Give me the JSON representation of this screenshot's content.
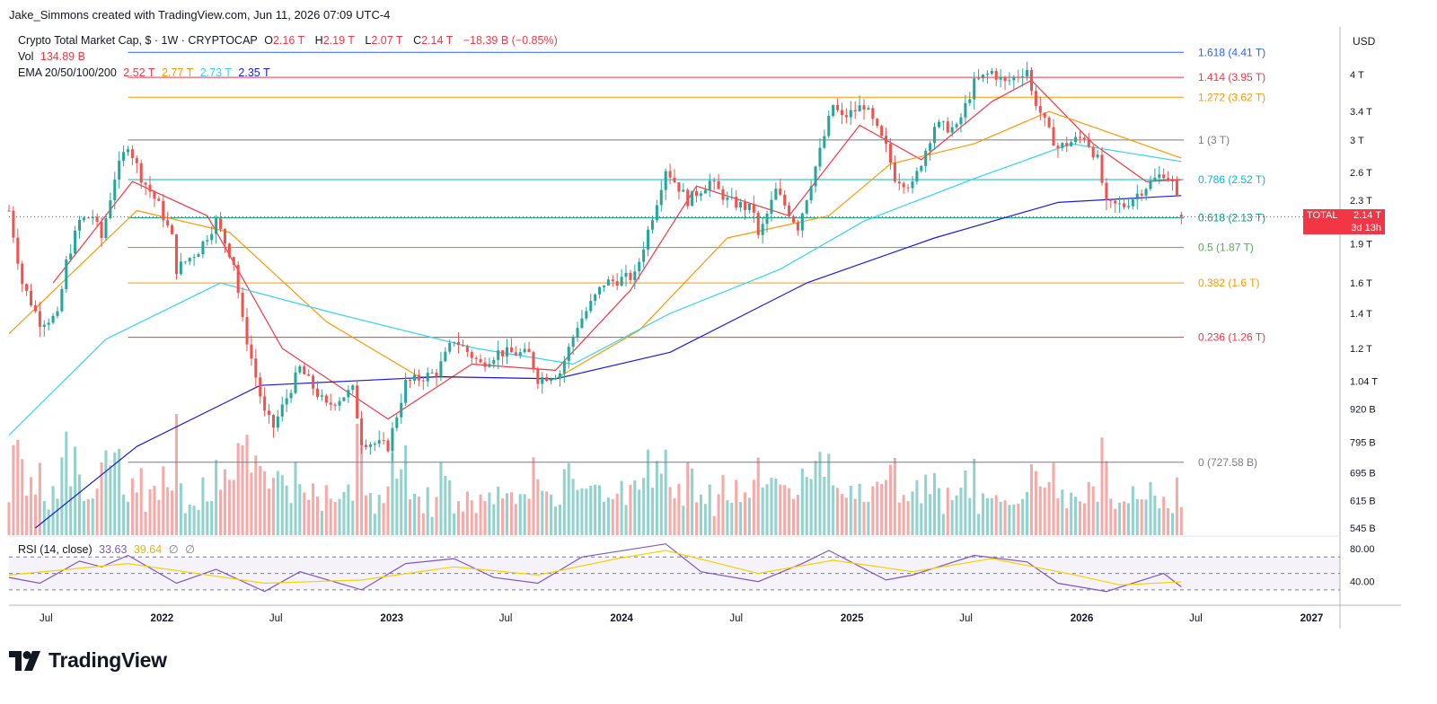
{
  "author_line": "Jake_Simmons created with TradingView.com, Jun 11, 2026 07:09 UTC-4",
  "legend": {
    "symbol": "Crypto Total Market Cap, $ · 1W · CRYPTOCAP",
    "o_label": "O",
    "o_value": "2.16 T",
    "h_label": "H",
    "h_value": "2.19 T",
    "l_label": "L",
    "l_value": "2.07 T",
    "c_label": "C",
    "c_value": "2.14 T",
    "change": "−18.39 B (−0.85%)",
    "vol_label": "Vol",
    "vol_value": "134.89 B",
    "ema_label": "EMA 20/50/100/200",
    "ema_values": [
      "2.52 T",
      "2.77 T",
      "2.73 T",
      "2.35 T"
    ],
    "ema_colors": [
      "#f23645",
      "#ff9800",
      "#33d4f0",
      "#1a1ae6"
    ],
    "rsi_label": "RSI (14, close)",
    "rsi_value": "33.63",
    "rsi_ma_value": "39.64",
    "rsi_icons": [
      "∅",
      "∅"
    ]
  },
  "price_tag": {
    "symbol": "TOTAL",
    "price": "2.14 T",
    "countdown": "3d 13h"
  },
  "brand": {
    "name": "TradingView",
    "icon": "tradingview-logo-icon"
  },
  "colors": {
    "up": "#26a69a",
    "down": "#ef5350",
    "rsi": "#7e57c2",
    "rsi_ma": "#f5d300",
    "axis_text": "#131722",
    "grid": "#f0f3fa"
  },
  "chart_data": {
    "type": "candlestick",
    "currency": "USD",
    "price_axis_scale": "log",
    "y_ticks": [
      "4 T",
      "3.4 T",
      "3 T",
      "2.6 T",
      "2.3 T",
      "1.9 T",
      "1.6 T",
      "1.4 T",
      "1.2 T",
      "1.04 T",
      "920 B",
      "795 B",
      "695 B",
      "615 B",
      "545 B"
    ],
    "y_tick_values": [
      4.0,
      3.4,
      3.0,
      2.6,
      2.3,
      1.9,
      1.6,
      1.4,
      1.2,
      1.04,
      0.92,
      0.795,
      0.695,
      0.615,
      0.545
    ],
    "x_ticks": [
      "Jul",
      "2022",
      "Jul",
      "2023",
      "Jul",
      "2024",
      "Jul",
      "2025",
      "Jul",
      "2026",
      "Jul",
      "2027"
    ],
    "x_tick_dates": [
      "2021-07-01",
      "2022-01-01",
      "2022-07-01",
      "2023-01-01",
      "2023-07-01",
      "2024-01-01",
      "2024-07-01",
      "2025-01-01",
      "2025-07-01",
      "2026-01-01",
      "2026-07-01",
      "2027-01-01"
    ],
    "x_range": [
      "2021-05-03",
      "2027-02-15"
    ],
    "last_close": "2.14 T",
    "fibonacci": [
      {
        "level": "1.618",
        "value": "4.41 T",
        "v": 4.41,
        "color": "#2962ff"
      },
      {
        "level": "1.414",
        "value": "3.95 T",
        "v": 3.95,
        "color": "#f23645"
      },
      {
        "level": "1.272",
        "value": "3.62 T",
        "v": 3.62,
        "color": "#ff9800"
      },
      {
        "level": "1",
        "value": "3 T",
        "v": 3.0,
        "color": "#787b86"
      },
      {
        "level": "0.786",
        "value": "2.52 T",
        "v": 2.52,
        "color": "#00bcd4"
      },
      {
        "level": "0.618",
        "value": "2.13 T",
        "v": 2.13,
        "color": "#089981"
      },
      {
        "level": "0.5",
        "value": "1.87 T",
        "v": 1.87,
        "color": "#4caf50"
      },
      {
        "level": "0.382",
        "value": "1.6 T",
        "v": 1.6,
        "color": "#ff9800"
      },
      {
        "level": "0.236",
        "value": "1.26 T",
        "v": 1.26,
        "color": "#f23645"
      },
      {
        "level": "0",
        "value": "727.58 B",
        "v": 0.72758,
        "color": "#787b86"
      }
    ],
    "fib_start_date": "2021-11-08",
    "close_path": [
      [
        "2021-05-03",
        2.2
      ],
      [
        "2021-05-24",
        1.6
      ],
      [
        "2021-06-21",
        1.35
      ],
      [
        "2021-07-19",
        1.38
      ],
      [
        "2021-08-02",
        1.75
      ],
      [
        "2021-08-23",
        2.1
      ],
      [
        "2021-09-13",
        2.15
      ],
      [
        "2021-09-27",
        1.95
      ],
      [
        "2021-10-18",
        2.55
      ],
      [
        "2021-11-08",
        2.95
      ],
      [
        "2021-11-29",
        2.55
      ],
      [
        "2021-12-27",
        2.25
      ],
      [
        "2022-01-17",
        1.95
      ],
      [
        "2022-01-24",
        1.7
      ],
      [
        "2022-02-28",
        1.85
      ],
      [
        "2022-03-28",
        2.1
      ],
      [
        "2022-04-25",
        1.75
      ],
      [
        "2022-05-09",
        1.35
      ],
      [
        "2022-06-13",
        0.9
      ],
      [
        "2022-06-27",
        0.85
      ],
      [
        "2022-08-08",
        1.1
      ],
      [
        "2022-09-19",
        0.93
      ],
      [
        "2022-10-31",
        1.0
      ],
      [
        "2022-11-14",
        0.8
      ],
      [
        "2022-12-26",
        0.78
      ],
      [
        "2023-01-23",
        1.03
      ],
      [
        "2023-03-13",
        1.08
      ],
      [
        "2023-04-10",
        1.25
      ],
      [
        "2023-05-22",
        1.12
      ],
      [
        "2023-06-19",
        1.18
      ],
      [
        "2023-08-07",
        1.17
      ],
      [
        "2023-08-21",
        1.05
      ],
      [
        "2023-09-25",
        1.08
      ],
      [
        "2023-10-23",
        1.33
      ],
      [
        "2023-12-04",
        1.6
      ],
      [
        "2023-12-25",
        1.62
      ],
      [
        "2024-01-22",
        1.65
      ],
      [
        "2024-02-26",
        2.3
      ],
      [
        "2024-03-11",
        2.65
      ],
      [
        "2024-04-15",
        2.3
      ],
      [
        "2024-05-20",
        2.5
      ],
      [
        "2024-06-17",
        2.3
      ],
      [
        "2024-07-29",
        2.2
      ],
      [
        "2024-08-05",
        1.95
      ],
      [
        "2024-09-02",
        2.4
      ],
      [
        "2024-10-07",
        2.05
      ],
      [
        "2024-11-11",
        2.85
      ],
      [
        "2024-12-02",
        3.5
      ],
      [
        "2024-12-16",
        3.3
      ],
      [
        "2025-01-20",
        3.5
      ],
      [
        "2025-02-24",
        2.9
      ],
      [
        "2025-03-10",
        2.55
      ],
      [
        "2025-04-07",
        2.45
      ],
      [
        "2025-05-12",
        3.2
      ],
      [
        "2025-06-16",
        3.15
      ],
      [
        "2025-07-14",
        3.85
      ],
      [
        "2025-08-11",
        4.05
      ],
      [
        "2025-09-01",
        3.85
      ],
      [
        "2025-10-06",
        4.1
      ],
      [
        "2025-10-13",
        3.7
      ],
      [
        "2025-11-10",
        3.1
      ],
      [
        "2025-11-24",
        2.9
      ],
      [
        "2026-01-05",
        3.05
      ],
      [
        "2026-01-26",
        2.75
      ],
      [
        "2026-02-09",
        2.25
      ],
      [
        "2026-03-09",
        2.25
      ],
      [
        "2026-04-13",
        2.45
      ],
      [
        "2026-05-11",
        2.6
      ],
      [
        "2026-05-25",
        2.48
      ],
      [
        "2026-06-08",
        2.14
      ]
    ],
    "ema_paths": [
      {
        "name": "EMA 20",
        "color": "#f23645",
        "points": [
          [
            "2021-07-12",
            1.6
          ],
          [
            "2021-11-15",
            2.5
          ],
          [
            "2022-03-14",
            2.15
          ],
          [
            "2022-07-11",
            1.2
          ],
          [
            "2022-12-26",
            0.88
          ],
          [
            "2023-05-08",
            1.12
          ],
          [
            "2023-09-18",
            1.09
          ],
          [
            "2024-01-15",
            1.55
          ],
          [
            "2024-04-29",
            2.45
          ],
          [
            "2024-09-23",
            2.15
          ],
          [
            "2025-01-13",
            3.2
          ],
          [
            "2025-04-21",
            2.75
          ],
          [
            "2025-08-11",
            3.55
          ],
          [
            "2025-10-13",
            3.9
          ],
          [
            "2026-01-19",
            2.95
          ],
          [
            "2026-04-13",
            2.5
          ],
          [
            "2026-06-08",
            2.52
          ]
        ]
      },
      {
        "name": "EMA 50",
        "color": "#ff9800",
        "points": [
          [
            "2021-05-03",
            1.28
          ],
          [
            "2021-11-22",
            2.2
          ],
          [
            "2022-04-18",
            2.0
          ],
          [
            "2022-09-19",
            1.35
          ],
          [
            "2023-02-13",
            1.06
          ],
          [
            "2023-09-18",
            1.05
          ],
          [
            "2024-01-29",
            1.3
          ],
          [
            "2024-06-17",
            1.95
          ],
          [
            "2024-11-25",
            2.15
          ],
          [
            "2025-03-03",
            2.7
          ],
          [
            "2025-07-14",
            2.95
          ],
          [
            "2025-11-10",
            3.4
          ],
          [
            "2026-03-02",
            3.05
          ],
          [
            "2026-06-08",
            2.77
          ]
        ]
      },
      {
        "name": "EMA 100",
        "color": "#33d4f0",
        "points": [
          [
            "2021-05-03",
            0.82
          ],
          [
            "2021-10-04",
            1.25
          ],
          [
            "2022-04-04",
            1.6
          ],
          [
            "2022-10-03",
            1.4
          ],
          [
            "2023-05-15",
            1.2
          ],
          [
            "2023-10-16",
            1.12
          ],
          [
            "2024-03-18",
            1.4
          ],
          [
            "2024-09-09",
            1.7
          ],
          [
            "2025-01-20",
            2.1
          ],
          [
            "2025-07-21",
            2.55
          ],
          [
            "2025-12-15",
            2.95
          ],
          [
            "2026-06-08",
            2.73
          ]
        ]
      },
      {
        "name": "EMA 200",
        "color": "#1a1ae6",
        "points": [
          [
            "2021-06-14",
            0.545
          ],
          [
            "2021-11-22",
            0.78
          ],
          [
            "2022-06-06",
            1.02
          ],
          [
            "2023-03-20",
            1.06
          ],
          [
            "2023-09-18",
            1.05
          ],
          [
            "2024-03-18",
            1.18
          ],
          [
            "2024-10-21",
            1.6
          ],
          [
            "2025-05-12",
            1.95
          ],
          [
            "2025-11-24",
            2.28
          ],
          [
            "2026-06-08",
            2.35
          ]
        ]
      }
    ],
    "volume_axis_range": [
      "0",
      "1.2x max shown"
    ],
    "rsi": {
      "length": 14,
      "last": 33.63,
      "ma_last": 39.64,
      "y_ticks": [
        "80.00",
        "40.00"
      ],
      "y_tick_values": [
        80,
        40
      ],
      "band": [
        30,
        70
      ],
      "ylim": [
        20,
        90
      ],
      "path": [
        [
          "2021-05-03",
          45
        ],
        [
          "2021-06-21",
          38
        ],
        [
          "2021-08-23",
          65
        ],
        [
          "2021-09-27",
          58
        ],
        [
          "2021-11-08",
          72
        ],
        [
          "2022-01-24",
          38
        ],
        [
          "2022-03-28",
          55
        ],
        [
          "2022-06-13",
          28
        ],
        [
          "2022-08-08",
          52
        ],
        [
          "2022-11-14",
          30
        ],
        [
          "2023-01-23",
          62
        ],
        [
          "2023-04-10",
          68
        ],
        [
          "2023-06-12",
          45
        ],
        [
          "2023-08-21",
          38
        ],
        [
          "2023-10-30",
          70
        ],
        [
          "2024-03-11",
          86
        ],
        [
          "2024-05-06",
          52
        ],
        [
          "2024-08-05",
          40
        ],
        [
          "2024-10-14",
          62
        ],
        [
          "2024-11-25",
          78
        ],
        [
          "2025-02-24",
          42
        ],
        [
          "2025-04-07",
          48
        ],
        [
          "2025-07-14",
          72
        ],
        [
          "2025-10-06",
          64
        ],
        [
          "2025-11-24",
          38
        ],
        [
          "2026-02-09",
          28
        ],
        [
          "2026-05-11",
          50
        ],
        [
          "2026-06-08",
          33.63
        ]
      ],
      "ma_path": [
        [
          "2021-05-03",
          48
        ],
        [
          "2021-11-08",
          62
        ],
        [
          "2022-06-13",
          38
        ],
        [
          "2022-11-14",
          42
        ],
        [
          "2023-04-10",
          58
        ],
        [
          "2023-08-21",
          48
        ],
        [
          "2023-12-25",
          68
        ],
        [
          "2024-03-11",
          78
        ],
        [
          "2024-08-05",
          50
        ],
        [
          "2024-12-02",
          66
        ],
        [
          "2025-04-07",
          52
        ],
        [
          "2025-08-11",
          68
        ],
        [
          "2025-12-22",
          48
        ],
        [
          "2026-03-02",
          36
        ],
        [
          "2026-06-08",
          39.64
        ]
      ]
    }
  }
}
